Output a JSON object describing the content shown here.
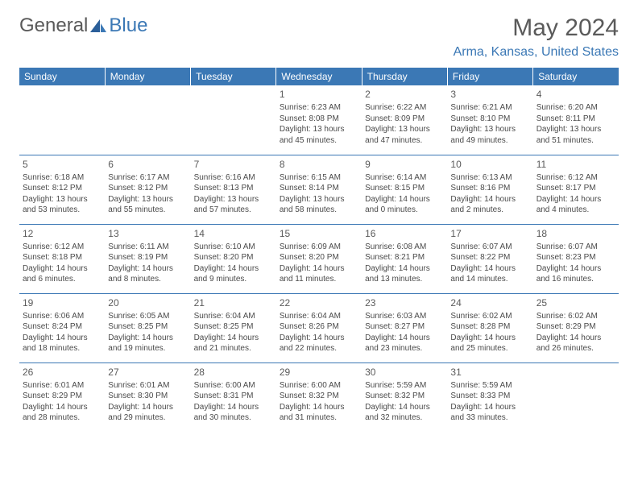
{
  "logo": {
    "text1": "General",
    "text2": "Blue"
  },
  "title": "May 2024",
  "location": "Arma, Kansas, United States",
  "colors": {
    "header_bg": "#3b78b5",
    "header_text": "#ffffff",
    "rule": "#3b78b5",
    "title_color": "#5a5a5a",
    "location_color": "#3b78b5",
    "body_text": "#4a4a4a",
    "background": "#ffffff",
    "logo_gray": "#5a5a5a",
    "logo_blue": "#3b78b5"
  },
  "typography": {
    "title_fontsize": 30,
    "location_fontsize": 16,
    "dayheader_fontsize": 12,
    "daynum_fontsize": 12,
    "cell_fontsize": 10
  },
  "day_headers": [
    "Sunday",
    "Monday",
    "Tuesday",
    "Wednesday",
    "Thursday",
    "Friday",
    "Saturday"
  ],
  "weeks": [
    [
      {
        "day": "",
        "lines": []
      },
      {
        "day": "",
        "lines": []
      },
      {
        "day": "",
        "lines": []
      },
      {
        "day": "1",
        "lines": [
          "Sunrise: 6:23 AM",
          "Sunset: 8:08 PM",
          "Daylight: 13 hours",
          "and 45 minutes."
        ]
      },
      {
        "day": "2",
        "lines": [
          "Sunrise: 6:22 AM",
          "Sunset: 8:09 PM",
          "Daylight: 13 hours",
          "and 47 minutes."
        ]
      },
      {
        "day": "3",
        "lines": [
          "Sunrise: 6:21 AM",
          "Sunset: 8:10 PM",
          "Daylight: 13 hours",
          "and 49 minutes."
        ]
      },
      {
        "day": "4",
        "lines": [
          "Sunrise: 6:20 AM",
          "Sunset: 8:11 PM",
          "Daylight: 13 hours",
          "and 51 minutes."
        ]
      }
    ],
    [
      {
        "day": "5",
        "lines": [
          "Sunrise: 6:18 AM",
          "Sunset: 8:12 PM",
          "Daylight: 13 hours",
          "and 53 minutes."
        ]
      },
      {
        "day": "6",
        "lines": [
          "Sunrise: 6:17 AM",
          "Sunset: 8:12 PM",
          "Daylight: 13 hours",
          "and 55 minutes."
        ]
      },
      {
        "day": "7",
        "lines": [
          "Sunrise: 6:16 AM",
          "Sunset: 8:13 PM",
          "Daylight: 13 hours",
          "and 57 minutes."
        ]
      },
      {
        "day": "8",
        "lines": [
          "Sunrise: 6:15 AM",
          "Sunset: 8:14 PM",
          "Daylight: 13 hours",
          "and 58 minutes."
        ]
      },
      {
        "day": "9",
        "lines": [
          "Sunrise: 6:14 AM",
          "Sunset: 8:15 PM",
          "Daylight: 14 hours",
          "and 0 minutes."
        ]
      },
      {
        "day": "10",
        "lines": [
          "Sunrise: 6:13 AM",
          "Sunset: 8:16 PM",
          "Daylight: 14 hours",
          "and 2 minutes."
        ]
      },
      {
        "day": "11",
        "lines": [
          "Sunrise: 6:12 AM",
          "Sunset: 8:17 PM",
          "Daylight: 14 hours",
          "and 4 minutes."
        ]
      }
    ],
    [
      {
        "day": "12",
        "lines": [
          "Sunrise: 6:12 AM",
          "Sunset: 8:18 PM",
          "Daylight: 14 hours",
          "and 6 minutes."
        ]
      },
      {
        "day": "13",
        "lines": [
          "Sunrise: 6:11 AM",
          "Sunset: 8:19 PM",
          "Daylight: 14 hours",
          "and 8 minutes."
        ]
      },
      {
        "day": "14",
        "lines": [
          "Sunrise: 6:10 AM",
          "Sunset: 8:20 PM",
          "Daylight: 14 hours",
          "and 9 minutes."
        ]
      },
      {
        "day": "15",
        "lines": [
          "Sunrise: 6:09 AM",
          "Sunset: 8:20 PM",
          "Daylight: 14 hours",
          "and 11 minutes."
        ]
      },
      {
        "day": "16",
        "lines": [
          "Sunrise: 6:08 AM",
          "Sunset: 8:21 PM",
          "Daylight: 14 hours",
          "and 13 minutes."
        ]
      },
      {
        "day": "17",
        "lines": [
          "Sunrise: 6:07 AM",
          "Sunset: 8:22 PM",
          "Daylight: 14 hours",
          "and 14 minutes."
        ]
      },
      {
        "day": "18",
        "lines": [
          "Sunrise: 6:07 AM",
          "Sunset: 8:23 PM",
          "Daylight: 14 hours",
          "and 16 minutes."
        ]
      }
    ],
    [
      {
        "day": "19",
        "lines": [
          "Sunrise: 6:06 AM",
          "Sunset: 8:24 PM",
          "Daylight: 14 hours",
          "and 18 minutes."
        ]
      },
      {
        "day": "20",
        "lines": [
          "Sunrise: 6:05 AM",
          "Sunset: 8:25 PM",
          "Daylight: 14 hours",
          "and 19 minutes."
        ]
      },
      {
        "day": "21",
        "lines": [
          "Sunrise: 6:04 AM",
          "Sunset: 8:25 PM",
          "Daylight: 14 hours",
          "and 21 minutes."
        ]
      },
      {
        "day": "22",
        "lines": [
          "Sunrise: 6:04 AM",
          "Sunset: 8:26 PM",
          "Daylight: 14 hours",
          "and 22 minutes."
        ]
      },
      {
        "day": "23",
        "lines": [
          "Sunrise: 6:03 AM",
          "Sunset: 8:27 PM",
          "Daylight: 14 hours",
          "and 23 minutes."
        ]
      },
      {
        "day": "24",
        "lines": [
          "Sunrise: 6:02 AM",
          "Sunset: 8:28 PM",
          "Daylight: 14 hours",
          "and 25 minutes."
        ]
      },
      {
        "day": "25",
        "lines": [
          "Sunrise: 6:02 AM",
          "Sunset: 8:29 PM",
          "Daylight: 14 hours",
          "and 26 minutes."
        ]
      }
    ],
    [
      {
        "day": "26",
        "lines": [
          "Sunrise: 6:01 AM",
          "Sunset: 8:29 PM",
          "Daylight: 14 hours",
          "and 28 minutes."
        ]
      },
      {
        "day": "27",
        "lines": [
          "Sunrise: 6:01 AM",
          "Sunset: 8:30 PM",
          "Daylight: 14 hours",
          "and 29 minutes."
        ]
      },
      {
        "day": "28",
        "lines": [
          "Sunrise: 6:00 AM",
          "Sunset: 8:31 PM",
          "Daylight: 14 hours",
          "and 30 minutes."
        ]
      },
      {
        "day": "29",
        "lines": [
          "Sunrise: 6:00 AM",
          "Sunset: 8:32 PM",
          "Daylight: 14 hours",
          "and 31 minutes."
        ]
      },
      {
        "day": "30",
        "lines": [
          "Sunrise: 5:59 AM",
          "Sunset: 8:32 PM",
          "Daylight: 14 hours",
          "and 32 minutes."
        ]
      },
      {
        "day": "31",
        "lines": [
          "Sunrise: 5:59 AM",
          "Sunset: 8:33 PM",
          "Daylight: 14 hours",
          "and 33 minutes."
        ]
      },
      {
        "day": "",
        "lines": []
      }
    ]
  ]
}
